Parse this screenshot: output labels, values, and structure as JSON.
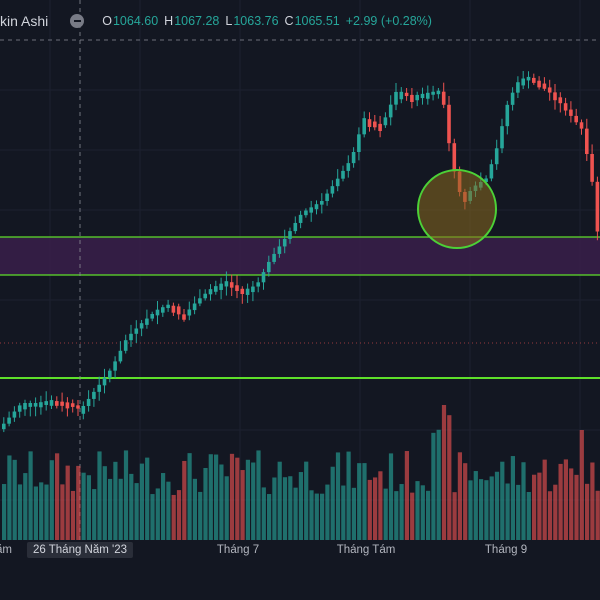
{
  "header": {
    "title": "kin Ashi",
    "ohlc": {
      "o_label": "O",
      "o": "1064.60",
      "h_label": "H",
      "h": "1067.28",
      "l_label": "L",
      "l": "1063.76",
      "c_label": "C",
      "c": "1065.51",
      "change": "+2.99 (+0.28%)"
    }
  },
  "x_axis": {
    "labels": [
      "ăm",
      "26 Tháng Năm '23",
      "Tháng 7",
      "Tháng Tám",
      "Tháng 9"
    ],
    "highlight_index": 1
  },
  "colors": {
    "background": "#131722",
    "up": "#26a69a",
    "down": "#ef5350",
    "zone_fill": "#3a1f4a",
    "zone_line": "#5ee02a",
    "circle": "#4cd137",
    "grid": "#1e222d",
    "text": "#d1d4dc"
  },
  "chart_data": {
    "type": "candlestick",
    "subtype": "heikin-ashi",
    "candles": [
      [
        409,
        405,
        1
      ],
      [
        402,
        395,
        1
      ],
      [
        398,
        390,
        1
      ],
      [
        391,
        384,
        1
      ],
      [
        389,
        381,
        1
      ],
      [
        388,
        384,
        0
      ],
      [
        387,
        383,
        0
      ],
      [
        386,
        382,
        1
      ],
      [
        387,
        384,
        0
      ],
      [
        386,
        383,
        1
      ],
      [
        384,
        388,
        0
      ],
      [
        388,
        392,
        0
      ],
      [
        392,
        386,
        1
      ],
      [
        386,
        382,
        1
      ],
      [
        384,
        378,
        1
      ],
      [
        380,
        374,
        1
      ]
    ],
    "volume_note": "teal=up, red=down"
  }
}
